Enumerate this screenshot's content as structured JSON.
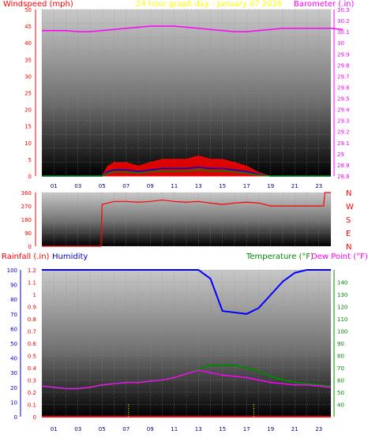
{
  "header": {
    "left_label": "Windspeed (mph)",
    "center_label": "24 hour graph day - January 07 2026",
    "right_label": "Barometer (.in)"
  },
  "panel3": {
    "rain_label": "Rainfall (.in)",
    "humidity_label": "Humidity",
    "temp_label": "Temperature (°F)",
    "dew_label": "Dew Point (°F)"
  },
  "colors": {
    "wind": "#ff0000",
    "gust": "#0000cc",
    "avg": "#008800",
    "barometer": "#ff00ff",
    "direction": "#ff0000",
    "humidity": "#0000ff",
    "temperature": "#008800",
    "dewpoint": "#ff00ff",
    "rain": "#ff0000",
    "title_text": "#ffff00",
    "bg_top": "#c8c8c8",
    "bg_bottom": "#000000"
  },
  "chart_data": [
    {
      "type": "area",
      "name": "wind",
      "x": [
        0,
        1,
        2,
        3,
        4,
        5,
        5.5,
        6,
        7,
        8,
        9,
        10,
        11,
        12,
        13,
        14,
        15,
        16,
        17,
        18,
        19,
        20,
        21,
        22,
        23,
        24
      ],
      "series": [
        {
          "name": "Windspeed",
          "values": [
            0,
            0,
            0,
            0,
            0,
            0,
            3,
            4,
            4,
            3,
            4,
            5,
            5,
            5,
            6,
            5,
            5,
            4,
            3,
            1,
            0,
            0,
            0,
            0,
            0,
            0
          ]
        }
      ],
      "left_axis": {
        "min": 0,
        "max": 50,
        "ticks": [
          "0",
          "5",
          "10",
          "15",
          "20",
          "25",
          "30",
          "35",
          "40",
          "45",
          "50"
        ]
      },
      "right_axis": {
        "min": 28.8,
        "max": 30.3,
        "ticks": [
          "28.8",
          "28.9",
          "29",
          "29.1",
          "29.2",
          "29.3",
          "29.4",
          "29.5",
          "29.6",
          "29.7",
          "29.8",
          "29.9",
          "30",
          "30.1",
          "30.2",
          "30.3"
        ]
      },
      "x_ticks": [
        "01",
        "03",
        "05",
        "07",
        "09",
        "11",
        "13",
        "15",
        "17",
        "19",
        "21",
        "23"
      ],
      "barometer": {
        "name": "Barometer",
        "values": [
          30.11,
          30.11,
          30.11,
          30.1,
          30.1,
          30.11,
          30.12,
          30.13,
          30.14,
          30.15,
          30.15,
          30.15,
          30.14,
          30.13,
          30.12,
          30.11,
          30.1,
          30.1,
          30.11,
          30.12,
          30.13,
          30.13,
          30.13,
          30.13,
          30.13,
          30.12
        ]
      }
    },
    {
      "type": "line",
      "name": "wind-direction",
      "x": [
        0,
        4.9,
        5,
        5.5,
        6,
        7,
        8,
        9,
        10,
        11,
        12,
        13,
        14,
        15,
        16,
        17,
        18,
        19,
        20,
        21,
        22,
        23,
        23.4,
        23.5,
        24
      ],
      "series": [
        {
          "name": "Direction",
          "values": [
            0,
            0,
            280,
            290,
            300,
            300,
            295,
            300,
            310,
            300,
            295,
            300,
            290,
            280,
            290,
            295,
            290,
            270,
            270,
            270,
            270,
            270,
            270,
            360,
            360
          ]
        }
      ],
      "left_axis": {
        "min": 0,
        "max": 360,
        "ticks": [
          "0",
          "90",
          "180",
          "270",
          "360"
        ]
      },
      "compass": [
        "N",
        "W",
        "S",
        "E",
        "N"
      ]
    },
    {
      "type": "line",
      "name": "temp-humidity",
      "x": [
        0,
        1,
        2,
        3,
        4,
        5,
        6,
        7,
        8,
        9,
        10,
        11,
        12,
        13,
        14,
        15,
        16,
        17,
        18,
        19,
        20,
        21,
        22,
        23,
        24
      ],
      "humidity_axis": {
        "min": 0,
        "max": 100,
        "ticks": [
          "0",
          "10",
          "20",
          "30",
          "40",
          "50",
          "60",
          "70",
          "80",
          "90",
          "100"
        ]
      },
      "rain_axis": {
        "min": 0,
        "max": 1.2,
        "ticks": [
          "0",
          "0.1",
          "0.2",
          "0.3",
          "0.4",
          "0.5",
          "0.6",
          "0.7",
          "0.8",
          "0.9",
          "1",
          "1.1",
          "1.2"
        ]
      },
      "temp_axis": {
        "min": 30,
        "max": 150,
        "ticks": [
          "40",
          "50",
          "60",
          "70",
          "80",
          "90",
          "100",
          "110",
          "120",
          "130",
          "140"
        ]
      },
      "x_ticks": [
        "01",
        "03",
        "05",
        "07",
        "09",
        "11",
        "13",
        "15",
        "17",
        "19",
        "21",
        "23"
      ],
      "series": [
        {
          "name": "Humidity",
          "axis": "humidity",
          "values": [
            100,
            100,
            100,
            100,
            100,
            100,
            100,
            100,
            100,
            100,
            100,
            100,
            100,
            100,
            94,
            72,
            71,
            70,
            74,
            83,
            92,
            98,
            100,
            100,
            100
          ]
        },
        {
          "name": "Temperature",
          "axis": "temp",
          "values": [
            55,
            54,
            53,
            53,
            54,
            56,
            57,
            58,
            58,
            59,
            60,
            62,
            65,
            69,
            72,
            72,
            72,
            70,
            67,
            63,
            60,
            58,
            57,
            56,
            55
          ]
        },
        {
          "name": "Dew Point",
          "axis": "temp",
          "values": [
            55,
            54,
            53,
            53,
            54,
            56,
            57,
            58,
            58,
            59,
            60,
            62,
            65,
            68,
            66,
            64,
            63,
            62,
            60,
            58,
            57,
            56,
            56,
            55,
            54
          ]
        },
        {
          "name": "Rainfall",
          "axis": "rain",
          "values": [
            0,
            0,
            0,
            0,
            0,
            0,
            0,
            0,
            0,
            0,
            0,
            0,
            0,
            0,
            0,
            0,
            0,
            0,
            0,
            0,
            0,
            0,
            0,
            0,
            0
          ]
        }
      ]
    }
  ]
}
